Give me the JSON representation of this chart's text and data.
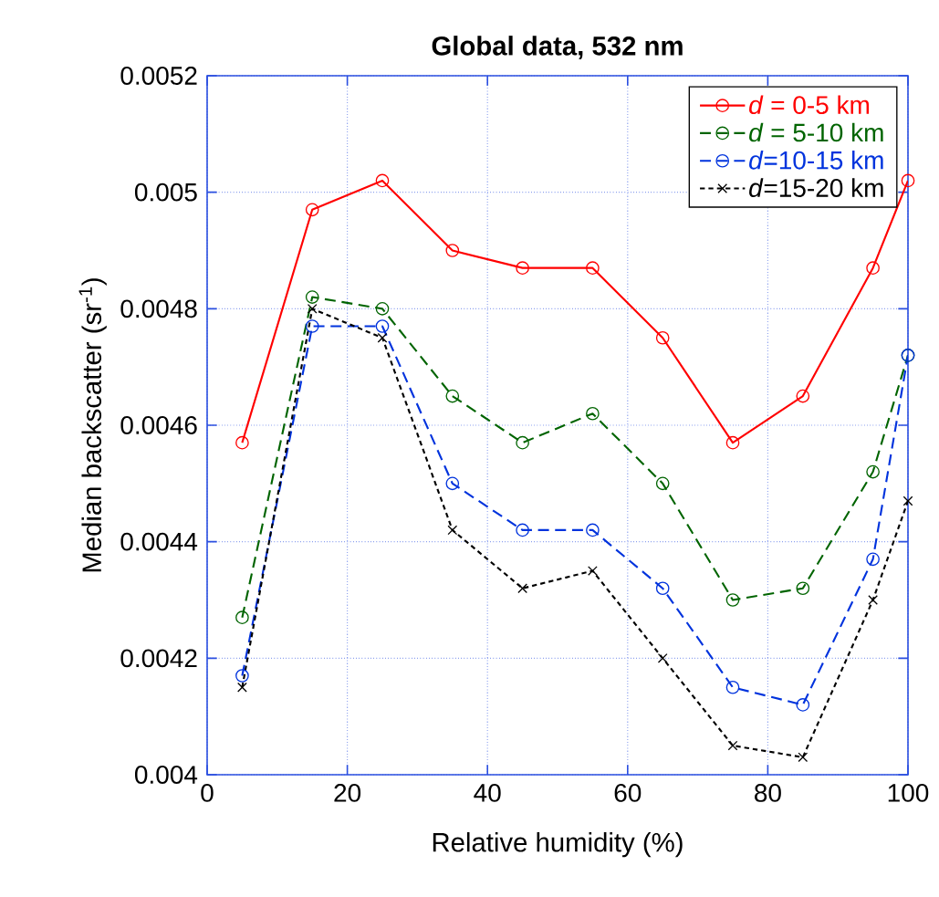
{
  "chart_data": {
    "type": "line",
    "title": "**Global data, 532 nm**",
    "xlabel": "Relative humidity (%)",
    "ylabel": "Median backscatter (sr$^{-1}$)",
    "x": [
      5,
      15,
      25,
      35,
      45,
      55,
      65,
      75,
      85,
      95,
      100
    ],
    "series": [
      {
        "name": "*d* = 0-5 km",
        "color": "#ff0000",
        "marker": "circle",
        "line_style": "solid",
        "values": [
          0.00457,
          0.00497,
          0.00502,
          0.0049,
          0.00487,
          0.00487,
          0.00475,
          0.00457,
          0.00465,
          0.00487,
          0.00502
        ]
      },
      {
        "name": "*d* = 5-10 km",
        "color": "#006400",
        "marker": "circle",
        "line_style": "dashed",
        "values": [
          0.00427,
          0.00482,
          0.0048,
          0.00465,
          0.00457,
          0.00462,
          0.0045,
          0.0043,
          0.00432,
          0.00452,
          0.00472
        ]
      },
      {
        "name": "*d*=10-15 km",
        "color": "#0033dd",
        "marker": "circle",
        "line_style": "dashed",
        "values": [
          0.00417,
          0.00477,
          0.00477,
          0.0045,
          0.00442,
          0.00442,
          0.00432,
          0.00415,
          0.00412,
          0.00437,
          0.00472
        ]
      },
      {
        "name": "*d*=15-20 km",
        "color": "#000000",
        "marker": "cross",
        "line_style": "dotted",
        "values": [
          0.00415,
          0.0048,
          0.00475,
          0.00442,
          0.00432,
          0.00435,
          0.0042,
          0.00405,
          0.00403,
          0.0043,
          0.00447
        ]
      }
    ],
    "xlim": [
      0,
      100
    ],
    "xticks": [
      0,
      20,
      40,
      60,
      80,
      100
    ],
    "ylim": [
      0.004,
      0.0052
    ],
    "yticks": [
      0.004,
      0.0042,
      0.0044,
      0.0046,
      0.0048,
      0.005,
      0.0052
    ],
    "grid": true,
    "legend": "top right"
  }
}
